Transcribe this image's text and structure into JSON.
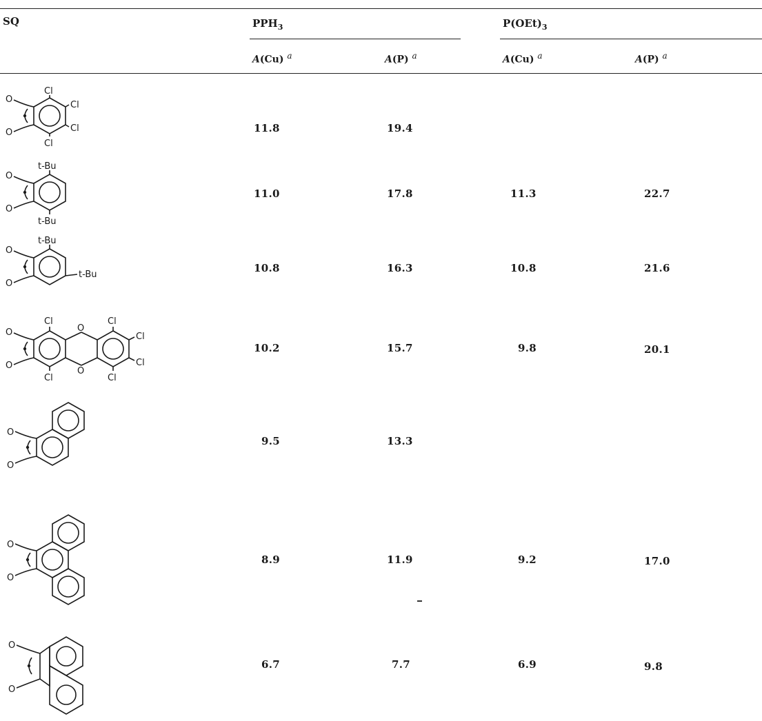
{
  "table": {
    "col_sq": "SQ",
    "col_pph3": "PPH",
    "col_pph3_sub": "3",
    "col_poet3": "P(OEt)",
    "col_poet3_sub": "3",
    "sub_acu": "A",
    "sub_acu_paren": "(Cu)",
    "sub_ap": "A",
    "sub_ap_paren": "(P)",
    "footnote_mark": "a",
    "rows": [
      {
        "pph3_cu": "11.8",
        "pph3_p": "19.4",
        "poet_cu": "",
        "poet_p": ""
      },
      {
        "pph3_cu": "11.0",
        "pph3_p": "17.8",
        "poet_cu": "11.3",
        "poet_p": "22.7"
      },
      {
        "pph3_cu": "10.8",
        "pph3_p": "16.3",
        "poet_cu": "10.8",
        "poet_p": "21.6"
      },
      {
        "pph3_cu": "10.2",
        "pph3_p": "15.7",
        "poet_cu": "9.8",
        "poet_p": "20.1"
      },
      {
        "pph3_cu": "9.5",
        "pph3_p": "13.3",
        "poet_cu": "",
        "poet_p": ""
      },
      {
        "pph3_cu": "8.9",
        "pph3_p": "11.9",
        "poet_cu": "9.2",
        "poet_p": "17.0"
      },
      {
        "pph3_cu": "6.7",
        "pph3_p": "7.7",
        "poet_cu": "6.9",
        "poet_p": "9.8"
      }
    ]
  },
  "structures": {
    "o": "O",
    "cl": "Cl",
    "tbu": "t-Bu"
  }
}
